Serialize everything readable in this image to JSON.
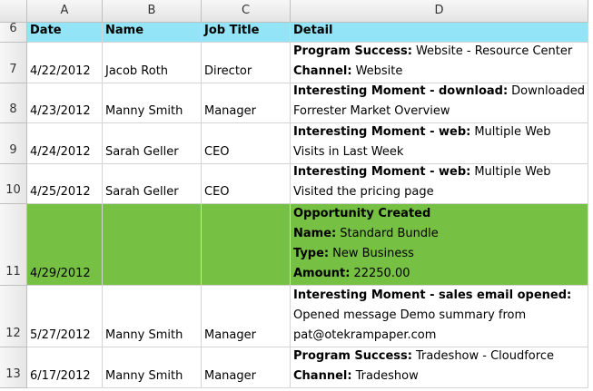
{
  "sheet": {
    "columns": [
      "A",
      "B",
      "C",
      "D"
    ],
    "header": {
      "row_number": "6",
      "cells": [
        "Date",
        "Name",
        "Job Title",
        "Detail"
      ]
    },
    "rows": [
      {
        "row_number": "7",
        "date": "4/22/2012",
        "name": "Jacob Roth",
        "title": "Director",
        "detail": [
          {
            "bold": "Program Success:",
            "text": "Website - Resource Center"
          },
          {
            "bold": "Channel:",
            "text": "Website"
          }
        ]
      },
      {
        "row_number": "8",
        "date": "4/23/2012",
        "name": "Manny Smith",
        "title": "Manager",
        "detail": [
          {
            "bold": "Interesting Moment - download:",
            "text": "Downloaded"
          },
          {
            "text": "Forrester Market Overview"
          }
        ]
      },
      {
        "row_number": "9",
        "date": "4/24/2012",
        "name": "Sarah Geller",
        "title": "CEO",
        "detail": [
          {
            "bold": "Interesting Moment - web:",
            "text": "Multiple Web"
          },
          {
            "text": "Visits in Last Week"
          }
        ]
      },
      {
        "row_number": "10",
        "date": "4/25/2012",
        "name": "Sarah Geller",
        "title": "CEO",
        "detail": [
          {
            "bold": "Interesting Moment - web:",
            "text": "Multiple Web"
          },
          {
            "text": "Visited the pricing page"
          }
        ]
      },
      {
        "row_number": "11",
        "date": "4/29/2012",
        "highlight": true,
        "detail": [
          {
            "bold": "Opportunity Created"
          },
          {
            "bold": "Name:",
            "text": "Standard Bundle"
          },
          {
            "bold": "Type:",
            "text": "New Business"
          },
          {
            "bold": "Amount:",
            "text": "22250.00"
          }
        ]
      },
      {
        "row_number": "12",
        "date": "5/27/2012",
        "name": "Manny Smith",
        "title": "Manager",
        "detail": [
          {
            "bold": "Interesting Moment - sales email opened:"
          },
          {
            "text": "Opened message Demo summary from"
          },
          {
            "text": "pat@otekrampaper.com"
          }
        ]
      },
      {
        "row_number": "13",
        "date": "6/17/2012",
        "name": "Manny Smith",
        "title": "Manager",
        "detail": [
          {
            "bold": "Program Success:",
            "text": "Tradeshow - Cloudforce"
          },
          {
            "bold": "Channel:",
            "text": "Tradeshow"
          }
        ]
      }
    ]
  }
}
